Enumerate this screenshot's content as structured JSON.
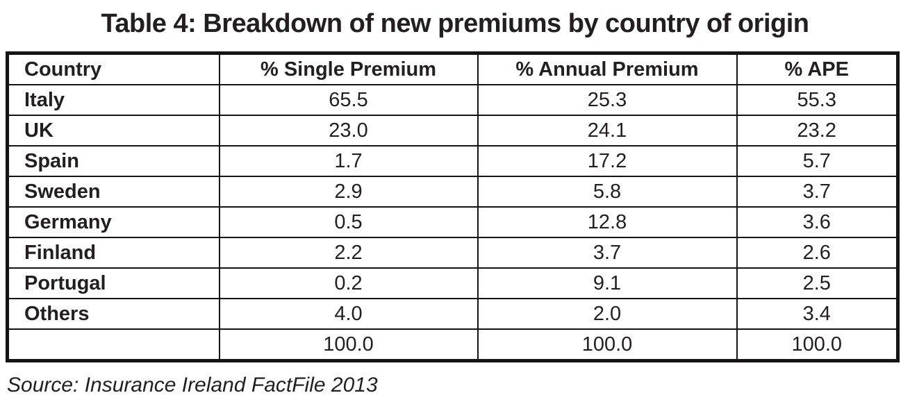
{
  "title": "Table 4: Breakdown of new premiums by country of origin",
  "source": "Source: Insurance Ireland FactFile 2013",
  "chart_data": {
    "type": "table",
    "columns": [
      "Country",
      "% Single Premium",
      "% Annual Premium",
      "% APE"
    ],
    "rows": [
      [
        "Italy",
        "65.5",
        "25.3",
        "55.3"
      ],
      [
        "UK",
        "23.0",
        "24.1",
        "23.2"
      ],
      [
        "Spain",
        "1.7",
        "17.2",
        "5.7"
      ],
      [
        "Sweden",
        "2.9",
        "5.8",
        "3.7"
      ],
      [
        "Germany",
        "0.5",
        "12.8",
        "3.6"
      ],
      [
        "Finland",
        "2.2",
        "3.7",
        "2.6"
      ],
      [
        "Portugal",
        "0.2",
        "9.1",
        "2.5"
      ],
      [
        "Others",
        "4.0",
        "2.0",
        "3.4"
      ],
      [
        "",
        "100.0",
        "100.0",
        "100.0"
      ]
    ]
  }
}
